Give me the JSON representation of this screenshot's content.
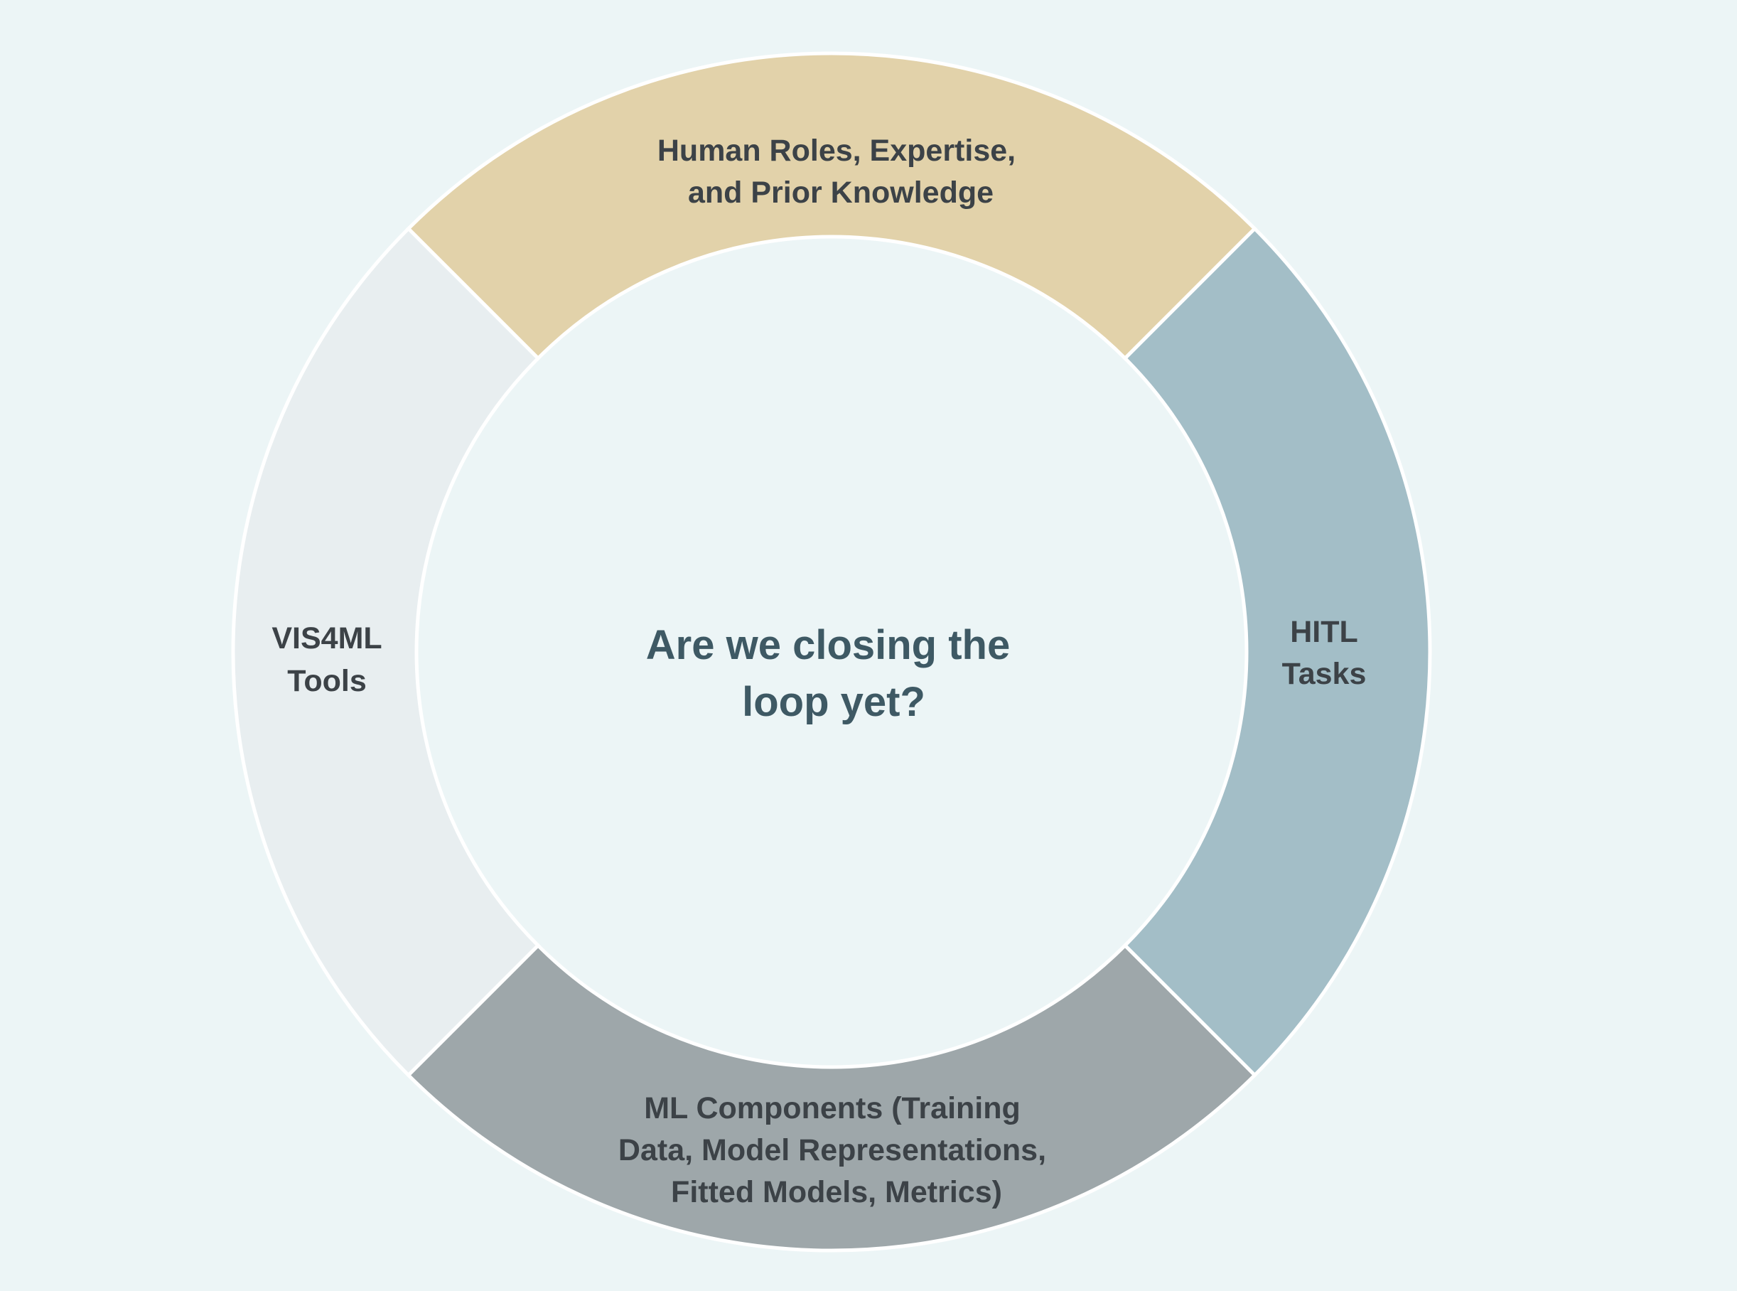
{
  "diagram": {
    "center_text": [
      "Are we closing the",
      "loop yet?"
    ],
    "segments": [
      {
        "id": "human-roles",
        "lines": [
          "Human Roles, Expertise,",
          "and Prior Knowledge"
        ],
        "color": "#e2d2aa"
      },
      {
        "id": "hitl-tasks",
        "lines": [
          "HITL",
          "Tasks"
        ],
        "color": "#a3bec7"
      },
      {
        "id": "ml-components",
        "lines": [
          "ML Components (Training",
          "Data, Model Representations,",
          "Fitted Models, Metrics)"
        ],
        "color": "#9ea7aa"
      },
      {
        "id": "vis4ml-tools",
        "lines": [
          "VIS4ML",
          "Tools"
        ],
        "color": "#e8eef0"
      }
    ],
    "background_color": "#ecf5f6",
    "separator_color": "#ffffff"
  }
}
